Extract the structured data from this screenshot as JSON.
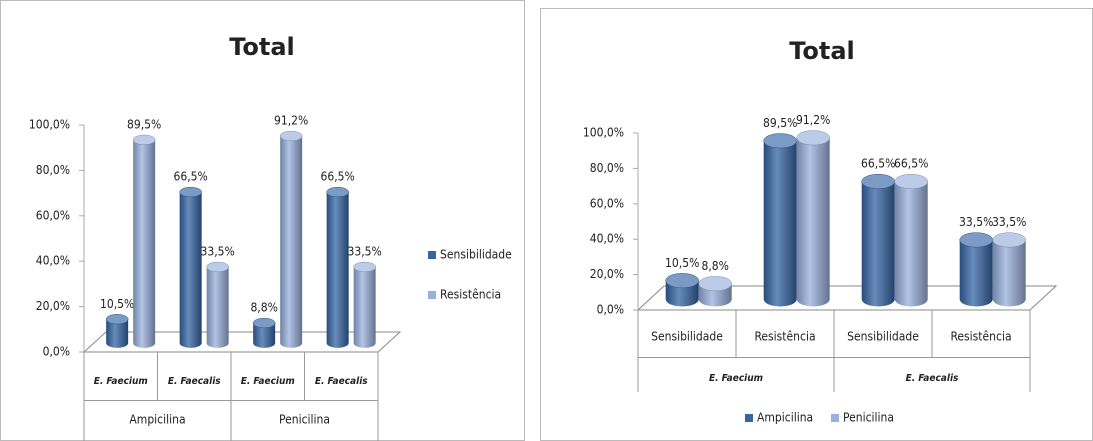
{
  "chart_data": [
    {
      "type": "bar3d",
      "title": "Total",
      "categories": [
        "E. Faecium",
        "E. Faecalis",
        "E. Faecium",
        "E. Faecalis"
      ],
      "category_groups": [
        "Ampicilina",
        "Penicilina"
      ],
      "series": [
        {
          "name": "Sensibilidade",
          "color": "#3465a4",
          "values": [
            10.5,
            66.5,
            8.8,
            66.5
          ],
          "value_labels": [
            "10,5%",
            "66,5%",
            "8,8%",
            "66,5%"
          ]
        },
        {
          "name": "Resistência",
          "color": "#98b0dc",
          "values": [
            89.5,
            33.5,
            91.2,
            33.5
          ],
          "value_labels": [
            "89,5%",
            "33,5%",
            "91,2%",
            "33,5%"
          ]
        }
      ],
      "ylim": [
        0,
        100
      ],
      "yticks": [
        {
          "value": 0,
          "label": "0,0%"
        },
        {
          "value": 20,
          "label": "20,0%"
        },
        {
          "value": 40,
          "label": "40,0%"
        },
        {
          "value": 60,
          "label": "60,0%"
        },
        {
          "value": 80,
          "label": "80,0%"
        },
        {
          "value": 100,
          "label": "100,0%"
        }
      ],
      "legend": "right"
    },
    {
      "type": "bar3d",
      "title": "Total",
      "categories": [
        "Sensibilidade",
        "Resistência",
        "Sensibilidade",
        "Resistência"
      ],
      "category_groups": [
        "E. Faecium",
        "E. Faecalis"
      ],
      "series": [
        {
          "name": "Ampicilina",
          "color": "#3465a4",
          "values": [
            10.5,
            89.5,
            66.5,
            33.5
          ],
          "value_labels": [
            "10,5%",
            "89,5%",
            "66,5%",
            "33,5%"
          ]
        },
        {
          "name": "Penicilina",
          "color": "#98b0dc",
          "values": [
            8.8,
            91.2,
            66.5,
            33.5
          ],
          "value_labels": [
            "8,8%",
            "91,2%",
            "66,5%",
            "33,5%"
          ]
        }
      ],
      "ylim": [
        0,
        100
      ],
      "yticks": [
        {
          "value": 0,
          "label": "0,0%"
        },
        {
          "value": 20,
          "label": "20,0%"
        },
        {
          "value": 40,
          "label": "40,0%"
        },
        {
          "value": 60,
          "label": "60,0%"
        },
        {
          "value": 80,
          "label": "80,0%"
        },
        {
          "value": 100,
          "label": "100,0%"
        }
      ],
      "legend": "bottom"
    }
  ]
}
